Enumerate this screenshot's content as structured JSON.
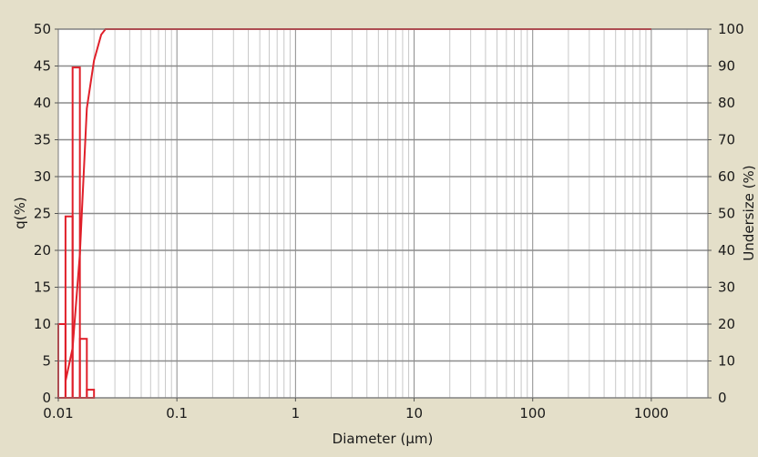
{
  "chart_data": {
    "type": "bar",
    "xlabel": "Diameter (µm)",
    "ylabel": "q(%)",
    "y2label": "Undersize (%)",
    "x_scale": "log",
    "xlim": [
      0.01,
      3000
    ],
    "ylim": [
      0,
      50
    ],
    "y2lim": [
      0,
      100
    ],
    "x_ticks": [
      0.01,
      0.1,
      1,
      10,
      100,
      1000
    ],
    "x_tick_labels": [
      "0.01",
      "0.1",
      "1",
      "10",
      "100",
      "1000"
    ],
    "y_ticks": [
      0,
      5,
      10,
      15,
      20,
      25,
      30,
      35,
      40,
      45,
      50
    ],
    "y_tick_labels": [
      "0",
      "5",
      "10",
      "15",
      "20",
      "25",
      "30",
      "35",
      "40",
      "45",
      "50"
    ],
    "y2_ticks": [
      0,
      10,
      20,
      30,
      40,
      50,
      60,
      70,
      80,
      90,
      100
    ],
    "y2_tick_labels": [
      "0",
      "10",
      "20",
      "30",
      "40",
      "50",
      "60",
      "70",
      "80",
      "90",
      "100"
    ],
    "grid": true,
    "colors": {
      "background": "#e4dfc9",
      "plot_background": "#ffffff",
      "major_grid": "#8c8c8c",
      "minor_grid": "#c8c8c8",
      "series": "#e0202a"
    },
    "histogram": {
      "bin_edges": [
        0.01,
        0.0115,
        0.0132,
        0.0152,
        0.0174,
        0.02
      ],
      "values": [
        10,
        24.6,
        44.8,
        8,
        1.1
      ],
      "axis": "left"
    },
    "cumulative": {
      "x": [
        0.0115,
        0.0132,
        0.0152,
        0.0174,
        0.02,
        0.023,
        0.025,
        1000
      ],
      "y": [
        4.5,
        13.5,
        39,
        78.5,
        91.5,
        98.5,
        100,
        100
      ],
      "axis": "right"
    }
  }
}
